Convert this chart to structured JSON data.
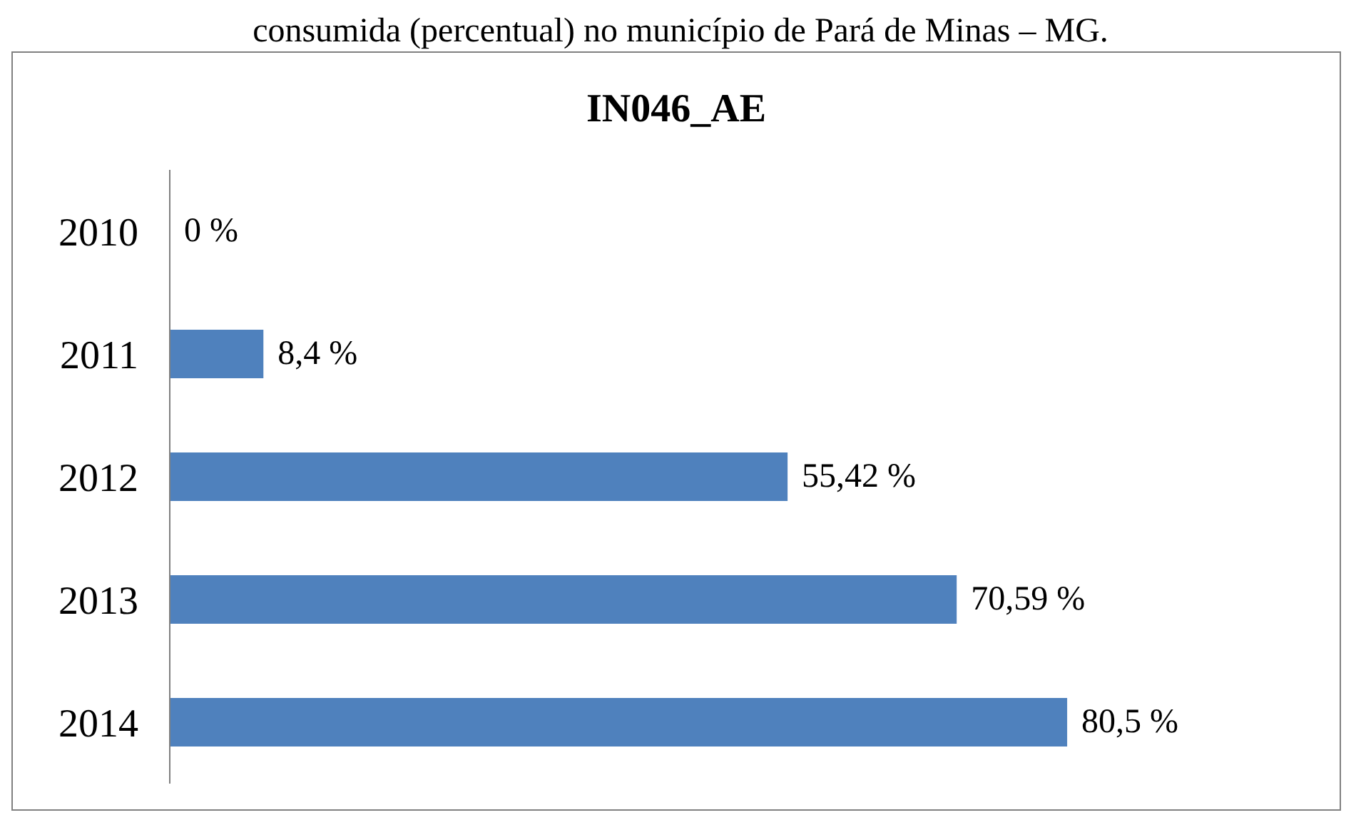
{
  "chart_data": {
    "type": "bar",
    "orientation": "horizontal",
    "title": "IN046_AE",
    "annotations": [
      "consumida (percentual) no município de Pará de Minas – MG."
    ],
    "categories": [
      "2010",
      "2011",
      "2012",
      "2013",
      "2014"
    ],
    "values": [
      0,
      8.4,
      55.42,
      70.59,
      80.5
    ],
    "value_labels": [
      "0 %",
      "8,4 %",
      "55,42 %",
      "70,59 %",
      "80,5 %"
    ],
    "color": "#4f81bd"
  }
}
